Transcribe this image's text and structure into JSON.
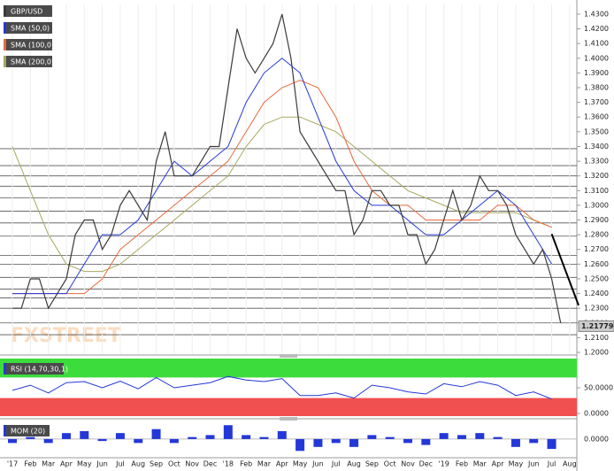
{
  "chart_data": {
    "type": "line",
    "title": "GBP/USD",
    "current": 1.21779,
    "xlim": [
      -0.69,
      31.4
    ],
    "xticks": [
      {
        "value": 0,
        "label": "'17"
      },
      {
        "value": 1,
        "label": "Feb"
      },
      {
        "value": 2,
        "label": "Mar"
      },
      {
        "value": 3,
        "label": "Apr"
      },
      {
        "value": 4,
        "label": "May"
      },
      {
        "value": 5,
        "label": "Jun"
      },
      {
        "value": 6,
        "label": "Jul"
      },
      {
        "value": 7,
        "label": "Aug"
      },
      {
        "value": 8,
        "label": "Sep"
      },
      {
        "value": 9,
        "label": "Oct"
      },
      {
        "value": 10,
        "label": "Nov"
      },
      {
        "value": 11,
        "label": "Dec"
      },
      {
        "value": 12,
        "label": "'18"
      },
      {
        "value": 13,
        "label": "Feb"
      },
      {
        "value": 14,
        "label": "Mar"
      },
      {
        "value": 15,
        "label": "Apr"
      },
      {
        "value": 16,
        "label": "May"
      },
      {
        "value": 17,
        "label": "Jun"
      },
      {
        "value": 18,
        "label": "Jul"
      },
      {
        "value": 19,
        "label": "Aug"
      },
      {
        "value": 20,
        "label": "Sep"
      },
      {
        "value": 21,
        "label": "Oct"
      },
      {
        "value": 22,
        "label": "Nov"
      },
      {
        "value": 23,
        "label": "Dec"
      },
      {
        "value": 24,
        "label": "'19"
      },
      {
        "value": 25,
        "label": "Feb"
      },
      {
        "value": 26,
        "label": "Mar"
      },
      {
        "value": 27,
        "label": "Apr"
      },
      {
        "value": 28,
        "label": "May"
      },
      {
        "value": 29,
        "label": "Jun"
      },
      {
        "value": 30,
        "label": "Jul"
      },
      {
        "value": 31,
        "label": "Aug"
      }
    ],
    "ylim": [
      1.1988,
      1.4366
    ],
    "yticks": [
      {
        "value": 1.2,
        "label": "1.2000"
      },
      {
        "value": 1.21,
        "label": "1.2100"
      },
      {
        "value": 1.22,
        "label": "1.2200"
      },
      {
        "value": 1.23,
        "label": "1.2300"
      },
      {
        "value": 1.24,
        "label": "1.2400"
      },
      {
        "value": 1.25,
        "label": "1.2500"
      },
      {
        "value": 1.26,
        "label": "1.2600"
      },
      {
        "value": 1.27,
        "label": "1.2700"
      },
      {
        "value": 1.28,
        "label": "1.2800"
      },
      {
        "value": 1.29,
        "label": "1.2900"
      },
      {
        "value": 1.3,
        "label": "1.3000"
      },
      {
        "value": 1.31,
        "label": "1.3100"
      },
      {
        "value": 1.32,
        "label": "1.3200"
      },
      {
        "value": 1.33,
        "label": "1.3300"
      },
      {
        "value": 1.34,
        "label": "1.3400"
      },
      {
        "value": 1.35,
        "label": "1.3500"
      },
      {
        "value": 1.36,
        "label": "1.3600"
      },
      {
        "value": 1.37,
        "label": "1.3700"
      },
      {
        "value": 1.38,
        "label": "1.3800"
      },
      {
        "value": 1.39,
        "label": "1.3900"
      },
      {
        "value": 1.4,
        "label": "1.4000"
      },
      {
        "value": 1.41,
        "label": "1.4100"
      },
      {
        "value": 1.42,
        "label": "1.4200"
      },
      {
        "value": 1.43,
        "label": "1.4300"
      }
    ],
    "levels": [
      1.3385,
      1.327,
      1.32,
      1.313,
      1.305,
      1.296,
      1.288,
      1.279,
      1.266,
      1.26,
      1.251,
      1.243,
      1.237,
      1.23,
      1.22,
      1.212
    ],
    "trendline": {
      "x": [
        30.0,
        31.5
      ],
      "values": [
        1.2805,
        1.232
      ]
    },
    "series": [
      {
        "name": "GBP/USD",
        "color": "#3a3a3a",
        "x": [
          0,
          0.5,
          1,
          1.5,
          2,
          2.5,
          3,
          3.5,
          4,
          4.5,
          5,
          5.5,
          6,
          6.5,
          7,
          7.5,
          8,
          8.5,
          9,
          9.5,
          10,
          10.5,
          11,
          11.5,
          12,
          12.5,
          13,
          13.5,
          14,
          14.5,
          15,
          15.5,
          16,
          16.5,
          17,
          17.5,
          18,
          18.5,
          19,
          19.5,
          20,
          20.5,
          21,
          21.5,
          22,
          22.5,
          23,
          23.5,
          24,
          24.5,
          25,
          25.5,
          26,
          26.5,
          27,
          27.5,
          28,
          28.5,
          29,
          29.5,
          30,
          30.5
        ],
        "values": [
          1.23,
          1.23,
          1.25,
          1.25,
          1.23,
          1.24,
          1.25,
          1.28,
          1.29,
          1.29,
          1.27,
          1.28,
          1.3,
          1.31,
          1.3,
          1.29,
          1.33,
          1.35,
          1.32,
          1.32,
          1.32,
          1.33,
          1.34,
          1.34,
          1.38,
          1.42,
          1.4,
          1.39,
          1.4,
          1.41,
          1.43,
          1.4,
          1.35,
          1.34,
          1.33,
          1.32,
          1.31,
          1.31,
          1.28,
          1.29,
          1.31,
          1.31,
          1.3,
          1.3,
          1.28,
          1.28,
          1.26,
          1.27,
          1.29,
          1.31,
          1.29,
          1.3,
          1.32,
          1.31,
          1.31,
          1.3,
          1.28,
          1.27,
          1.26,
          1.27,
          1.25,
          1.22
        ]
      },
      {
        "name": "SMA (50,0)",
        "color": "#2438d8",
        "x": [
          0,
          1,
          2,
          3,
          4,
          5,
          6,
          7,
          8,
          9,
          10,
          11,
          12,
          13,
          14,
          15,
          16,
          17,
          18,
          19,
          20,
          21,
          22,
          23,
          24,
          25,
          26,
          27,
          28,
          29,
          30
        ],
        "values": [
          1.24,
          1.24,
          1.24,
          1.24,
          1.26,
          1.28,
          1.28,
          1.29,
          1.31,
          1.33,
          1.32,
          1.33,
          1.34,
          1.37,
          1.39,
          1.4,
          1.39,
          1.36,
          1.33,
          1.31,
          1.3,
          1.3,
          1.29,
          1.28,
          1.28,
          1.29,
          1.3,
          1.31,
          1.3,
          1.28,
          1.26
        ]
      },
      {
        "name": "SMA (100,0)",
        "color": "#e8693c",
        "x": [
          0,
          1,
          2,
          3,
          4,
          5,
          6,
          7,
          8,
          9,
          10,
          11,
          12,
          13,
          14,
          15,
          16,
          17,
          18,
          19,
          20,
          21,
          22,
          23,
          24,
          25,
          26,
          27,
          28,
          29,
          30
        ],
        "values": [
          1.24,
          1.24,
          1.24,
          1.24,
          1.24,
          1.25,
          1.27,
          1.28,
          1.29,
          1.3,
          1.31,
          1.32,
          1.33,
          1.35,
          1.37,
          1.38,
          1.385,
          1.38,
          1.36,
          1.33,
          1.31,
          1.3,
          1.3,
          1.29,
          1.29,
          1.29,
          1.29,
          1.3,
          1.3,
          1.29,
          1.285
        ]
      },
      {
        "name": "SMA (200,0)",
        "color": "#a8a860",
        "x": [
          0,
          1,
          2,
          3,
          4,
          5,
          6,
          7,
          8,
          9,
          10,
          11,
          12,
          13,
          14,
          15,
          16,
          17,
          18,
          19,
          20,
          21,
          22,
          23,
          24,
          25,
          26,
          27,
          28,
          29,
          30
        ],
        "values": [
          1.34,
          1.31,
          1.28,
          1.26,
          1.255,
          1.255,
          1.26,
          1.27,
          1.28,
          1.29,
          1.3,
          1.31,
          1.32,
          1.34,
          1.355,
          1.36,
          1.36,
          1.355,
          1.35,
          1.34,
          1.33,
          1.32,
          1.31,
          1.305,
          1.3,
          1.295,
          1.295,
          1.295,
          1.295,
          1.29,
          1.285
        ]
      }
    ],
    "rsi": {
      "name": "RSI (14,70,30,1)",
      "color": "#2438d8",
      "ylim": [
        -5.2,
        106.9
      ],
      "yticks": [
        {
          "value": 0,
          "label": "0.0000"
        },
        {
          "value": 50,
          "label": "50.0000"
        }
      ],
      "upper": 70,
      "lower": 30,
      "x": [
        0,
        1,
        2,
        3,
        4,
        5,
        6,
        7,
        8,
        9,
        10,
        11,
        12,
        13,
        14,
        15,
        16,
        17,
        18,
        19,
        20,
        21,
        22,
        23,
        24,
        25,
        26,
        27,
        28,
        29,
        30
      ],
      "values": [
        45,
        55,
        40,
        60,
        62,
        50,
        63,
        48,
        70,
        50,
        55,
        60,
        72,
        65,
        62,
        68,
        35,
        35,
        40,
        30,
        55,
        50,
        42,
        38,
        58,
        52,
        62,
        55,
        35,
        42,
        28
      ]
    },
    "mom": {
      "name": "MOM (20)",
      "color": "#2438d8",
      "ylim": [
        -0.09,
        0.08
      ],
      "yticks": [
        {
          "value": 0,
          "label": "0.0000"
        }
      ],
      "x": [
        0,
        1,
        2,
        3,
        4,
        5,
        6,
        7,
        8,
        9,
        10,
        11,
        12,
        13,
        14,
        15,
        16,
        17,
        18,
        19,
        20,
        21,
        22,
        23,
        24,
        25,
        26,
        27,
        28,
        29,
        30
      ],
      "values": [
        -0.02,
        0.01,
        -0.02,
        0.03,
        0.04,
        -0.01,
        0.03,
        -0.02,
        0.05,
        -0.02,
        0.01,
        0.02,
        0.07,
        0.02,
        0.01,
        0.04,
        -0.06,
        -0.04,
        -0.02,
        -0.04,
        0.02,
        0.01,
        -0.02,
        -0.03,
        0.03,
        0.02,
        0.03,
        0.01,
        -0.04,
        -0.02,
        -0.05
      ]
    }
  }
}
